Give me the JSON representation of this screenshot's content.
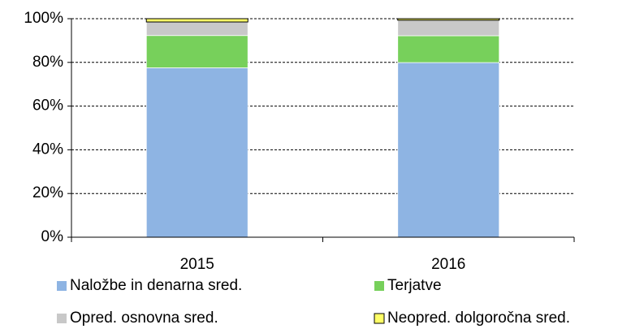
{
  "chart_data": {
    "type": "stacked_bar",
    "categories": [
      "2015",
      "2016"
    ],
    "series": [
      {
        "name": "Naložbe in denarna sred.",
        "color": "#8eb4e3",
        "values": [
          77.5,
          79.9
        ]
      },
      {
        "name": "Terjatve",
        "color": "#77d05b",
        "values": [
          14.8,
          12.3
        ]
      },
      {
        "name": "Opred. osnovna sred.",
        "color": "#c8c8c8",
        "values": [
          6.2,
          7.1
        ]
      },
      {
        "name": "Neopred. dolgoročna sred.",
        "color": "#ffff66",
        "values": [
          1.5,
          0.7
        ]
      }
    ],
    "ylim": [
      0,
      100
    ],
    "yticks": [
      {
        "value": 0,
        "label": "0%"
      },
      {
        "value": 20,
        "label": "20%"
      },
      {
        "value": 40,
        "label": "40%"
      },
      {
        "value": 60,
        "label": "60%"
      },
      {
        "value": 80,
        "label": "80%"
      },
      {
        "value": 100,
        "label": "100%"
      }
    ],
    "grid": true,
    "legend": "bottom"
  }
}
